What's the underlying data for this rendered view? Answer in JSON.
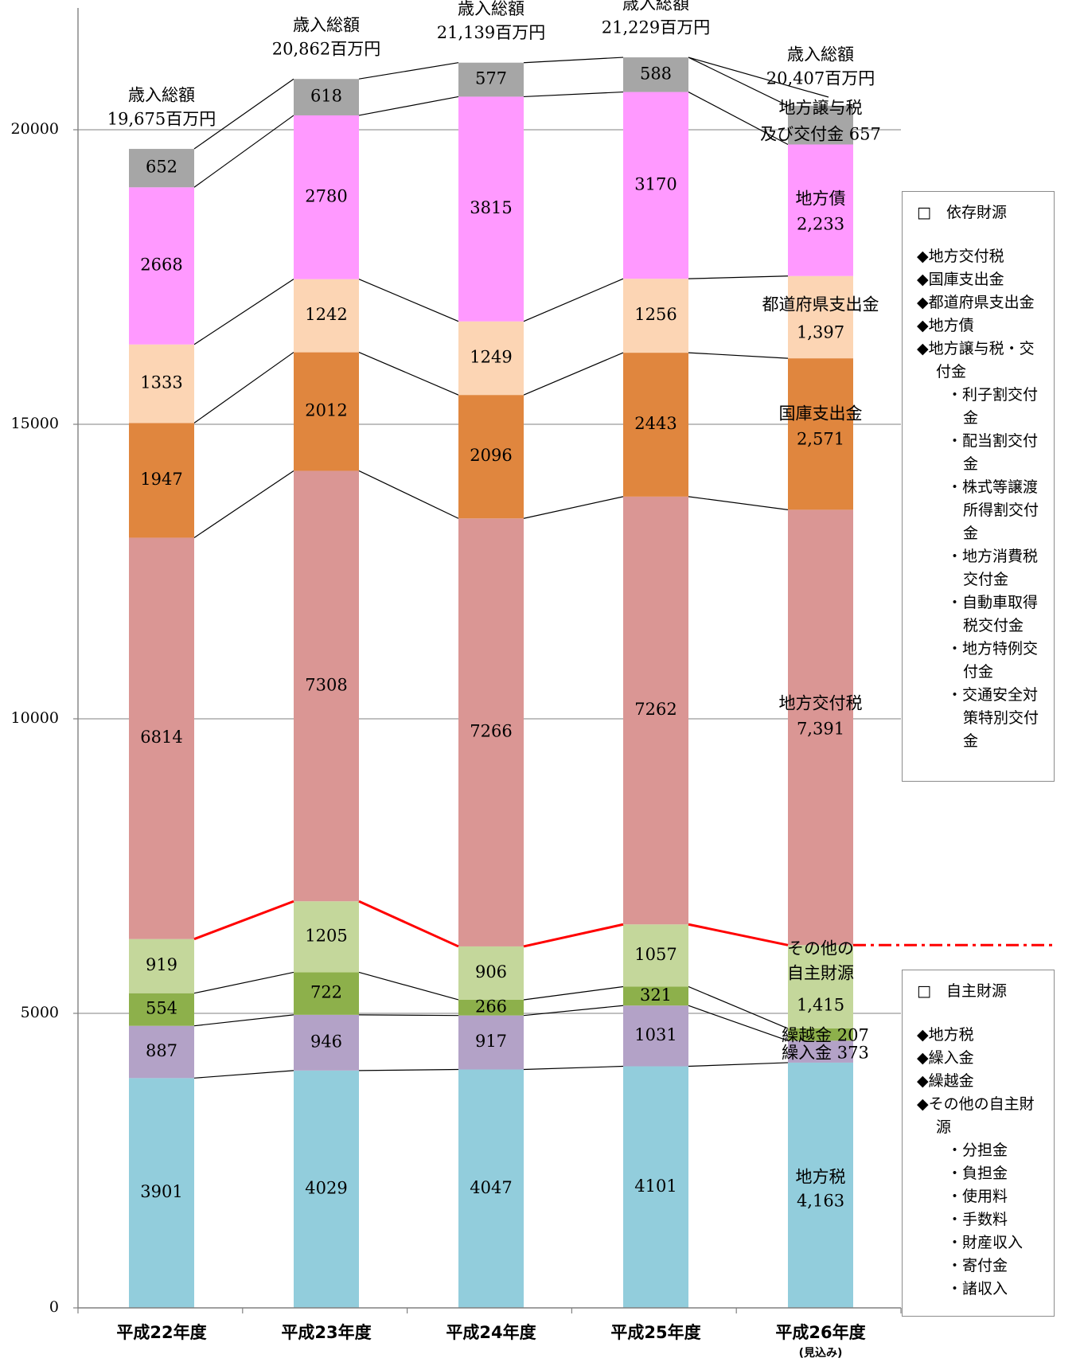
{
  "chart_data": {
    "type": "bar",
    "stacked": true,
    "categories": [
      "平成22年度",
      "平成23年度",
      "平成24年度",
      "平成25年度",
      "平成26年度"
    ],
    "category_note": {
      "index": 4,
      "text": "(見込み)"
    },
    "yticks": [
      0,
      5000,
      10000,
      15000,
      20000
    ],
    "ylim": [
      0,
      22400
    ],
    "grid": true,
    "series": [
      {
        "name": "地方税",
        "color": "#92cddc",
        "values": [
          3901,
          4029,
          4047,
          4101,
          4163
        ]
      },
      {
        "name": "繰入金",
        "color": "#b3a2c7",
        "values": [
          887,
          946,
          917,
          1031,
          373
        ]
      },
      {
        "name": "繰越金",
        "color": "#8db04b",
        "values": [
          554,
          722,
          266,
          321,
          207
        ]
      },
      {
        "name": "その他の自主財源",
        "color": "#c4d79b",
        "values": [
          919,
          1205,
          906,
          1057,
          1415
        ]
      },
      {
        "name": "地方交付税",
        "color": "#da9694",
        "values": [
          6814,
          7308,
          7266,
          7262,
          7391
        ]
      },
      {
        "name": "国庫支出金",
        "color": "#e0863e",
        "values": [
          1947,
          2012,
          2096,
          2443,
          2571
        ]
      },
      {
        "name": "都道府県支出金",
        "color": "#fcd5b4",
        "values": [
          1333,
          1242,
          1249,
          1256,
          1397
        ]
      },
      {
        "name": "地方債",
        "color": "#ff99ff",
        "values": [
          2668,
          2780,
          3815,
          3170,
          2233
        ]
      },
      {
        "name": "地方譲与税及び交付金",
        "color": "#a6a6a6",
        "values": [
          652,
          618,
          577,
          588,
          657
        ]
      }
    ],
    "data_labels": [
      [
        "3901",
        "887",
        "554",
        "919",
        "6814",
        "1947",
        "1333",
        "2668",
        "652"
      ],
      [
        "4029",
        "946",
        "722",
        "1205",
        "7308",
        "2012",
        "1242",
        "2780",
        "618"
      ],
      [
        "4047",
        "917",
        "266",
        "906",
        "7266",
        "2096",
        "1249",
        "3815",
        "577"
      ],
      [
        "4101",
        "1031",
        "321",
        "1057",
        "7262",
        "2443",
        "1256",
        "3170",
        "588"
      ]
    ],
    "last_bar_labels": [
      [
        "地方税",
        "4,163"
      ],
      [
        "繰入金 373"
      ],
      [
        "繰越金 207"
      ],
      [
        "その他の",
        "自主財源",
        "1,415"
      ],
      [
        "地方交付税",
        "7,391"
      ],
      [
        "国庫支出金",
        "2,571"
      ],
      [
        "都道府県支出金",
        "1,397"
      ],
      [
        "地方債",
        "2,233"
      ],
      [
        "地方譲与税",
        "及び交付金 657"
      ]
    ],
    "totals": [
      [
        "歳入総額",
        "19,675百万円"
      ],
      [
        "歳入総額",
        "20,862百万円"
      ],
      [
        "歳入総額",
        "21,139百万円"
      ],
      [
        "歳入総額",
        "21,229百万円"
      ],
      [
        "歳入総額",
        "20,407百万円"
      ]
    ],
    "divider_color": "#ff0000"
  },
  "legend_dependent": {
    "title": "□　依存財源",
    "items": [
      {
        "text": "◆地方交付税",
        "level": 0
      },
      {
        "text": "◆国庫支出金",
        "level": 0
      },
      {
        "text": "◆都道府県支出金",
        "level": 0
      },
      {
        "text": "◆地方債",
        "level": 0
      },
      {
        "text": "◆地方譲与税・交付金",
        "level": 0
      },
      {
        "text": "・利子割交付金",
        "level": 1
      },
      {
        "text": "・配当割交付金",
        "level": 1
      },
      {
        "text": "・株式等譲渡所得割交付金",
        "level": 1
      },
      {
        "text": "・地方消費税交付金",
        "level": 1
      },
      {
        "text": "・自動車取得税交付金",
        "level": 1
      },
      {
        "text": "・地方特例交付金",
        "level": 1
      },
      {
        "text": "・交通安全対策特別交付金",
        "level": 1
      }
    ]
  },
  "legend_independent": {
    "title": "□　自主財源",
    "items": [
      {
        "text": "◆地方税",
        "level": 0
      },
      {
        "text": "◆繰入金",
        "level": 0
      },
      {
        "text": "◆繰越金",
        "level": 0
      },
      {
        "text": "◆その他の自主財源",
        "level": 0
      },
      {
        "text": "・分担金",
        "level": 1
      },
      {
        "text": "・負担金",
        "level": 1
      },
      {
        "text": "・使用料",
        "level": 1
      },
      {
        "text": "・手数料",
        "level": 1
      },
      {
        "text": "・財産収入",
        "level": 1
      },
      {
        "text": "・寄付金",
        "level": 1
      },
      {
        "text": "・諸収入",
        "level": 1
      }
    ]
  }
}
